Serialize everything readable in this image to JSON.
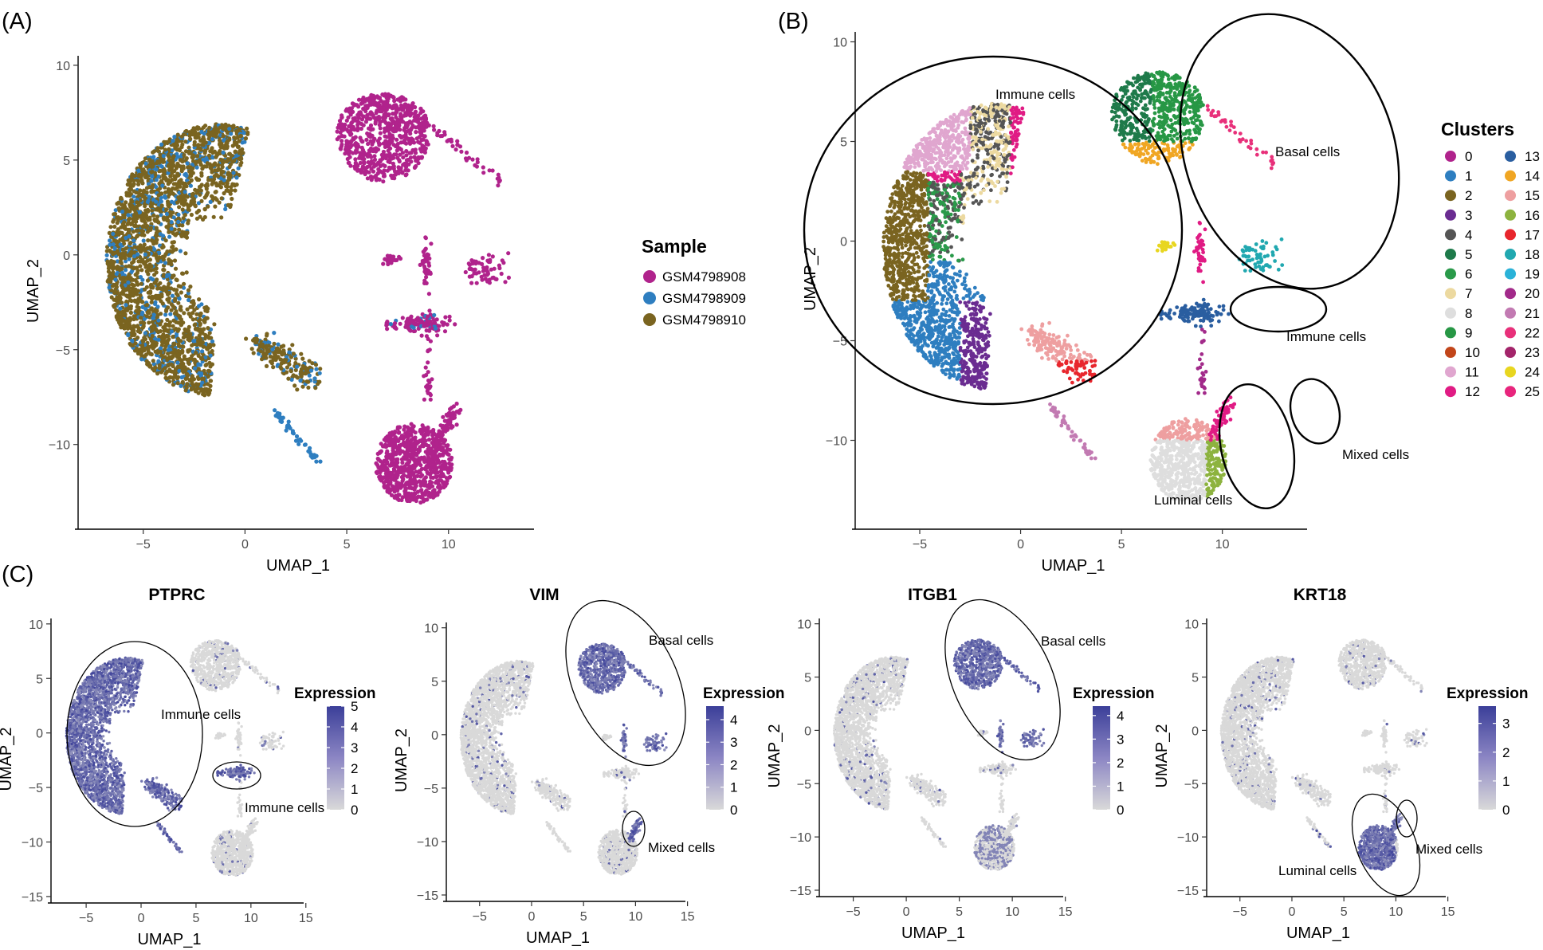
{
  "figure": {
    "panel_labels": [
      "(A)",
      "(B)",
      "(C)"
    ],
    "colors": {
      "gene_high": "#3b3f99",
      "gene_low": "#d9d9d9"
    },
    "icons": []
  },
  "chart_data": [
    {
      "id": "A",
      "type": "scatter",
      "xlabel": "UMAP_1",
      "ylabel": "UMAP_2",
      "xlim": [
        -8.2,
        14.2
      ],
      "ylim": [
        -14.3,
        10.5
      ],
      "xticks": [
        -5,
        0,
        5,
        10
      ],
      "yticks": [
        -10,
        -5,
        0,
        5,
        10
      ],
      "xtick_labels": [
        "−5",
        "0",
        "5",
        "10"
      ],
      "ytick_labels": [
        "−10",
        "−5",
        "0",
        "5",
        "10"
      ],
      "legend_title": "Sample",
      "legend_position": "right",
      "series": [
        {
          "name": "GSM4798908",
          "color": "#b0238c"
        },
        {
          "name": "GSM4798909",
          "color": "#2e7ec0"
        },
        {
          "name": "GSM4798910",
          "color": "#7a6420"
        }
      ],
      "annotations": []
    },
    {
      "id": "B",
      "type": "scatter",
      "xlabel": "UMAP_1",
      "ylabel": "UMAP_2",
      "xlim": [
        -8.2,
        14.2
      ],
      "ylim": [
        -14.3,
        10.5
      ],
      "xticks": [
        -5,
        0,
        5,
        10
      ],
      "yticks": [
        -10,
        -5,
        0,
        5,
        10
      ],
      "xtick_labels": [
        "−5",
        "0",
        "5",
        "10"
      ],
      "ytick_labels": [
        "−10",
        "−5",
        "0",
        "5",
        "10"
      ],
      "legend_title": "Clusters",
      "legend_position": "right",
      "series": [
        {
          "name": "0",
          "color": "#b0238c"
        },
        {
          "name": "1",
          "color": "#2e7ec0"
        },
        {
          "name": "2",
          "color": "#7a6420"
        },
        {
          "name": "3",
          "color": "#6a2c91"
        },
        {
          "name": "4",
          "color": "#555555"
        },
        {
          "name": "5",
          "color": "#1e7a4a"
        },
        {
          "name": "6",
          "color": "#2a9a4a"
        },
        {
          "name": "7",
          "color": "#ecd9a0"
        },
        {
          "name": "8",
          "color": "#dedede"
        },
        {
          "name": "9",
          "color": "#279745"
        },
        {
          "name": "10",
          "color": "#c2461a"
        },
        {
          "name": "11",
          "color": "#e0a6cf"
        },
        {
          "name": "12",
          "color": "#e01b84"
        },
        {
          "name": "13",
          "color": "#2a5ea0"
        },
        {
          "name": "14",
          "color": "#f0a623"
        },
        {
          "name": "15",
          "color": "#ee9fa0"
        },
        {
          "name": "16",
          "color": "#8db33f"
        },
        {
          "name": "17",
          "color": "#e8262d"
        },
        {
          "name": "18",
          "color": "#21a8b0"
        },
        {
          "name": "19",
          "color": "#2ab2d8"
        },
        {
          "name": "20",
          "color": "#a22a8a"
        },
        {
          "name": "21",
          "color": "#c27ab2"
        },
        {
          "name": "22",
          "color": "#e8307a"
        },
        {
          "name": "23",
          "color": "#a3246a"
        },
        {
          "name": "24",
          "color": "#e8d620"
        },
        {
          "name": "25",
          "color": "#e8257d"
        }
      ],
      "annotations": [
        "Immune cells",
        "Basal cells",
        "Immune cells",
        "Mixed cells",
        "Luminal cells"
      ]
    },
    {
      "id": "C1",
      "type": "scatter",
      "title": "PTPRC",
      "xlabel": "UMAP_1",
      "ylabel": "UMAP_2",
      "xlim": [
        -8.2,
        14.8
      ],
      "ylim": [
        -15.3,
        10.5
      ],
      "xticks": [
        -5,
        0,
        5,
        10,
        15
      ],
      "yticks": [
        -15,
        -10,
        -5,
        0,
        5,
        10
      ],
      "xtick_labels": [
        "−5",
        "0",
        "5",
        "10",
        "15"
      ],
      "ytick_labels": [
        "−15",
        "−10",
        "−5",
        "0",
        "5",
        "10"
      ],
      "legend_title": "Expression",
      "colorbar": {
        "min": 0,
        "max": 5,
        "ticks": [
          "0",
          "1",
          "2",
          "3",
          "4",
          "5"
        ]
      },
      "annotations": [
        "Immune cells",
        "Immune cells"
      ]
    },
    {
      "id": "C2",
      "type": "scatter",
      "title": "VIM",
      "xlabel": "UMAP_1",
      "ylabel": "UMAP_2",
      "xlim": [
        -8.2,
        14.8
      ],
      "ylim": [
        -15.3,
        10.5
      ],
      "xticks": [
        -5,
        0,
        5,
        10,
        15
      ],
      "yticks": [
        -15,
        -10,
        -5,
        0,
        5,
        10
      ],
      "xtick_labels": [
        "−5",
        "0",
        "5",
        "10",
        "15"
      ],
      "ytick_labels": [
        "−15",
        "−10",
        "−5",
        "0",
        "5",
        "10"
      ],
      "legend_title": "Expression",
      "colorbar": {
        "min": 0,
        "max": 4.6,
        "ticks": [
          "0",
          "1",
          "2",
          "3",
          "4"
        ]
      },
      "annotations": [
        "Basal cells",
        "Mixed cells"
      ]
    },
    {
      "id": "C3",
      "type": "scatter",
      "title": "ITGB1",
      "xlabel": "UMAP_1",
      "ylabel": "UMAP_2",
      "xlim": [
        -8.2,
        14.8
      ],
      "ylim": [
        -15.3,
        10.5
      ],
      "xticks": [
        -5,
        0,
        5,
        10,
        15
      ],
      "yticks": [
        -15,
        -10,
        -5,
        0,
        5,
        10
      ],
      "xtick_labels": [
        "−5",
        "0",
        "5",
        "10",
        "15"
      ],
      "ytick_labels": [
        "−15",
        "−10",
        "−5",
        "0",
        "5",
        "10"
      ],
      "legend_title": "Expression",
      "colorbar": {
        "min": 0,
        "max": 4.4,
        "ticks": [
          "0",
          "1",
          "2",
          "3",
          "4"
        ]
      },
      "annotations": [
        "Basal cells"
      ]
    },
    {
      "id": "C4",
      "type": "scatter",
      "title": "KRT18",
      "xlabel": "UMAP_1",
      "ylabel": "UMAP_2",
      "xlim": [
        -8.2,
        14.8
      ],
      "ylim": [
        -15.3,
        10.5
      ],
      "xticks": [
        -5,
        0,
        5,
        10,
        15
      ],
      "yticks": [
        -15,
        -10,
        -5,
        0,
        5,
        10
      ],
      "xtick_labels": [
        "−5",
        "0",
        "5",
        "10",
        "15"
      ],
      "ytick_labels": [
        "−15",
        "−10",
        "−5",
        "0",
        "5",
        "10"
      ],
      "legend_title": "Expression",
      "colorbar": {
        "min": 0,
        "max": 3.6,
        "ticks": [
          "0",
          "1",
          "2",
          "3"
        ]
      },
      "annotations": [
        "Mixed cells",
        "Luminal cells"
      ]
    }
  ]
}
